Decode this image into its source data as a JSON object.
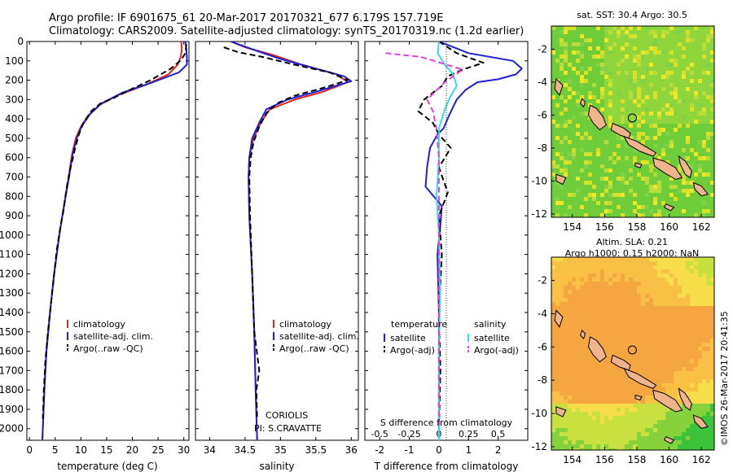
{
  "header": {
    "title_line1": "Argo profile: IF 6901675_61 20-Mar-2017 20170321_677 6.179S 157.719E",
    "title_line2": "Climatology: CARS2009. Satellite-adjusted climatology: synTS_20170319.nc (1.2d earlier)"
  },
  "side_text": "©IMOS 26-Mar-2017 20:41:35",
  "colors": {
    "clim": "#e8231a",
    "sat": "#1f1fd6",
    "argo": "#000000",
    "sal_sat": "#33dde8",
    "sal_argo": "#e53be0",
    "island_fill": "#f0b48c"
  },
  "chart_data": [
    {
      "id": "temperature",
      "type": "line",
      "xlabel": "temperature (deg C)",
      "ylabel": "",
      "xlim": [
        -0.5,
        31
      ],
      "ylim": [
        2060,
        0
      ],
      "xticks": [
        0,
        5,
        10,
        15,
        20,
        25,
        30
      ],
      "yticks": [
        0,
        100,
        200,
        300,
        400,
        500,
        600,
        700,
        800,
        900,
        1000,
        1100,
        1200,
        1300,
        1400,
        1500,
        1600,
        1700,
        1800,
        1900,
        2000
      ],
      "ytick_labels": [
        "0",
        "100",
        "200",
        "300",
        "400",
        "500",
        "600",
        "700",
        "800",
        "900",
        "1000",
        "1100",
        "1200",
        "1300",
        "1400",
        "1500",
        "1600",
        "1700",
        "1800",
        "1900",
        "2000"
      ],
      "legend": [
        "climatology",
        "satellite-adj. clim.",
        "Argo(..raw -QC)"
      ],
      "series": [
        {
          "name": "climatology",
          "style": "clim",
          "points": [
            [
              29.5,
              0
            ],
            [
              29.6,
              40
            ],
            [
              29.4,
              80
            ],
            [
              28.8,
              120
            ],
            [
              27.0,
              170
            ],
            [
              22.5,
              225
            ],
            [
              17.0,
              280
            ],
            [
              13.5,
              330
            ],
            [
              11.5,
              380
            ],
            [
              10.0,
              440
            ],
            [
              9.0,
              500
            ],
            [
              8.3,
              580
            ],
            [
              7.6,
              700
            ],
            [
              6.7,
              850
            ],
            [
              5.8,
              1000
            ],
            [
              4.8,
              1200
            ],
            [
              4.0,
              1400
            ],
            [
              3.3,
              1600
            ],
            [
              2.9,
              1800
            ],
            [
              2.5,
              2060
            ]
          ]
        },
        {
          "name": "satellite-adj. clim.",
          "style": "sat",
          "points": [
            [
              30.3,
              0
            ],
            [
              30.5,
              40
            ],
            [
              30.6,
              80
            ],
            [
              30.6,
              120
            ],
            [
              29.0,
              160
            ],
            [
              24.0,
              210
            ],
            [
              18.0,
              265
            ],
            [
              14.0,
              320
            ],
            [
              11.8,
              375
            ],
            [
              10.2,
              435
            ],
            [
              9.2,
              500
            ],
            [
              8.4,
              580
            ],
            [
              7.7,
              700
            ],
            [
              6.7,
              850
            ],
            [
              5.8,
              1000
            ],
            [
              4.8,
              1200
            ],
            [
              4.0,
              1400
            ],
            [
              3.3,
              1600
            ],
            [
              2.9,
              1800
            ],
            [
              2.5,
              2060
            ]
          ]
        },
        {
          "name": "Argo(..raw -QC)",
          "style": "argo",
          "points": [
            [
              30.5,
              15
            ],
            [
              30.3,
              60
            ],
            [
              29.5,
              95
            ],
            [
              27.5,
              140
            ],
            [
              23.5,
              200
            ],
            [
              19.5,
              250
            ],
            [
              16.5,
              290
            ],
            [
              13.8,
              320
            ],
            [
              12.0,
              360
            ],
            [
              10.5,
              420
            ],
            [
              9.6,
              480
            ],
            [
              8.8,
              560
            ],
            [
              8.0,
              650
            ],
            [
              7.2,
              760
            ],
            [
              6.7,
              860
            ],
            [
              6.0,
              960
            ],
            [
              5.3,
              1080
            ],
            [
              4.8,
              1200
            ],
            [
              4.2,
              1350
            ],
            [
              3.6,
              1500
            ],
            [
              3.1,
              1650
            ],
            [
              2.8,
              1800
            ],
            [
              2.6,
              1950
            ]
          ]
        }
      ]
    },
    {
      "id": "salinity",
      "type": "line",
      "xlabel": "salinity",
      "ylabel": "",
      "xlim": [
        33.8,
        36.1
      ],
      "ylim": [
        2060,
        0
      ],
      "xticks": [
        34,
        34.5,
        35,
        35.5,
        36
      ],
      "legend": [
        "climatology",
        "satellite-adj. clim.",
        "Argo(..raw -QC)"
      ],
      "annotation": [
        "CORIOLIS",
        "PI: S.CRAVATTE"
      ],
      "series": [
        {
          "name": "climatology",
          "style": "clim",
          "points": [
            [
              34.3,
              0
            ],
            [
              34.5,
              30
            ],
            [
              34.9,
              70
            ],
            [
              35.3,
              120
            ],
            [
              35.8,
              170
            ],
            [
              35.95,
              210
            ],
            [
              35.6,
              260
            ],
            [
              35.2,
              300
            ],
            [
              34.85,
              350
            ],
            [
              34.72,
              420
            ],
            [
              34.62,
              500
            ],
            [
              34.56,
              600
            ],
            [
              34.55,
              700
            ],
            [
              34.56,
              900
            ],
            [
              34.6,
              1200
            ],
            [
              34.63,
              1500
            ],
            [
              34.65,
              1800
            ],
            [
              34.67,
              2060
            ]
          ]
        },
        {
          "name": "satellite-adj. clim.",
          "style": "sat",
          "points": [
            [
              34.3,
              0
            ],
            [
              34.6,
              40
            ],
            [
              35.0,
              90
            ],
            [
              35.5,
              140
            ],
            [
              35.9,
              180
            ],
            [
              36.0,
              205
            ],
            [
              35.5,
              260
            ],
            [
              35.1,
              300
            ],
            [
              34.8,
              350
            ],
            [
              34.7,
              420
            ],
            [
              34.6,
              500
            ],
            [
              34.56,
              600
            ],
            [
              34.55,
              700
            ],
            [
              34.56,
              900
            ],
            [
              34.6,
              1200
            ],
            [
              34.63,
              1500
            ],
            [
              34.65,
              1800
            ],
            [
              34.67,
              2060
            ]
          ]
        },
        {
          "name": "Argo(..raw -QC)",
          "style": "argo",
          "points": [
            [
              34.2,
              30
            ],
            [
              34.4,
              55
            ],
            [
              34.75,
              80
            ],
            [
              35.2,
              120
            ],
            [
              35.7,
              160
            ],
            [
              35.95,
              200
            ],
            [
              35.6,
              240
            ],
            [
              35.2,
              280
            ],
            [
              34.95,
              320
            ],
            [
              34.8,
              370
            ],
            [
              34.7,
              440
            ],
            [
              34.62,
              520
            ],
            [
              34.58,
              600
            ],
            [
              34.56,
              700
            ],
            [
              34.57,
              900
            ],
            [
              34.6,
              1200
            ],
            [
              34.63,
              1500
            ],
            [
              34.7,
              1700
            ],
            [
              34.66,
              1800
            ],
            [
              34.67,
              1950
            ]
          ]
        }
      ]
    },
    {
      "id": "difference",
      "type": "line",
      "xlabel": "T difference from climatology",
      "ylabel": "",
      "xlim": [
        -2.5,
        3.0
      ],
      "ylim": [
        2060,
        0
      ],
      "xticks": [
        -2,
        -1,
        0,
        1,
        2
      ],
      "top_axis_label": "S difference from climatology",
      "top_ticks": [
        -0.5,
        -0.25,
        0,
        0.25,
        0.5
      ],
      "top_tick_labels": [
        "-0.5",
        "-0.25",
        "0",
        "0.25",
        "0.5"
      ],
      "legend_headers": [
        "temperature",
        "salinity"
      ],
      "legend": [
        "satellite",
        "Argo(-adj)",
        "satellite",
        "Argo(-adj)"
      ],
      "series": [
        {
          "name": "satellite",
          "group": "temperature",
          "style": "sat",
          "points": [
            [
              0.0,
              0
            ],
            [
              1.0,
              60
            ],
            [
              2.5,
              100
            ],
            [
              2.8,
              140
            ],
            [
              2.6,
              170
            ],
            [
              2.0,
              195
            ],
            [
              1.3,
              210
            ],
            [
              0.9,
              250
            ],
            [
              0.6,
              300
            ],
            [
              0.35,
              380
            ],
            [
              0.15,
              450
            ],
            [
              -0.05,
              480
            ],
            [
              -0.3,
              550
            ],
            [
              -0.4,
              650
            ],
            [
              -0.45,
              750
            ],
            [
              0.1,
              850
            ],
            [
              0.05,
              950
            ],
            [
              -0.05,
              1100
            ],
            [
              0.0,
              1400
            ],
            [
              0.0,
              2060
            ]
          ]
        },
        {
          "name": "Argo(-adj)",
          "group": "temperature",
          "style": "argo",
          "points": [
            [
              0.0,
              0
            ],
            [
              0.6,
              60
            ],
            [
              1.5,
              110
            ],
            [
              0.8,
              145
            ],
            [
              0.3,
              180
            ],
            [
              0.1,
              230
            ],
            [
              -0.5,
              300
            ],
            [
              -0.7,
              360
            ],
            [
              -0.2,
              420
            ],
            [
              0.0,
              480
            ],
            [
              0.4,
              550
            ],
            [
              0.0,
              650
            ],
            [
              0.3,
              780
            ],
            [
              0.0,
              900
            ],
            [
              0.1,
              1100
            ],
            [
              0.0,
              1400
            ],
            [
              0.05,
              1700
            ],
            [
              0.0,
              2000
            ]
          ]
        },
        {
          "name": "satellite",
          "group": "salinity",
          "style": "sal_sat",
          "points": [
            [
              0.0,
              0
            ],
            [
              -0.01,
              60
            ],
            [
              0.05,
              120
            ],
            [
              0.12,
              170
            ],
            [
              0.15,
              230
            ],
            [
              0.1,
              280
            ],
            [
              0.05,
              350
            ],
            [
              0.0,
              450
            ],
            [
              0.0,
              600
            ],
            [
              -0.02,
              800
            ],
            [
              0.0,
              1000
            ],
            [
              0.01,
              1300
            ],
            [
              0.0,
              1600
            ],
            [
              0.0,
              2060
            ]
          ]
        },
        {
          "name": "Argo(-adj)",
          "group": "salinity",
          "style": "sal_argo",
          "points": [
            [
              -0.45,
              60
            ],
            [
              -0.15,
              80
            ],
            [
              0.2,
              145
            ],
            [
              0.05,
              210
            ],
            [
              -0.1,
              300
            ],
            [
              -0.05,
              360
            ],
            [
              -0.02,
              450
            ],
            [
              0.0,
              600
            ],
            [
              0.0,
              900
            ],
            [
              0.0,
              1200
            ],
            [
              0.0,
              1600
            ],
            [
              0.0,
              2000
            ]
          ]
        }
      ]
    },
    {
      "id": "map_sst",
      "type": "heatmap",
      "title": "sat. SST: 30.4 Argo: 30.5",
      "xlim": [
        152.7,
        162.8
      ],
      "ylim": [
        -12.2,
        -0.6
      ],
      "xticks": [
        154,
        156,
        158,
        160,
        162
      ],
      "yticks": [
        -2,
        -4,
        -6,
        -8,
        -10,
        -12
      ],
      "argo_position": {
        "lon": 157.719,
        "lat": -6.179
      }
    },
    {
      "id": "map_sla",
      "type": "heatmap",
      "title_line1": "Altim. SLA: 0.21",
      "title_line2": "Argo h1000: 0.15 h2000: NaN",
      "xlim": [
        152.7,
        162.8
      ],
      "ylim": [
        -12.2,
        -0.6
      ],
      "xticks": [
        154,
        156,
        158,
        160,
        162
      ],
      "yticks": [
        -2,
        -4,
        -6,
        -8,
        -10,
        -12
      ],
      "argo_position": {
        "lon": 157.719,
        "lat": -6.179
      }
    }
  ]
}
